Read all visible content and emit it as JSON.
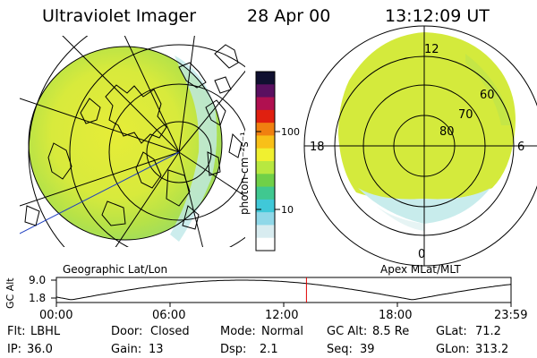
{
  "header": {
    "instrument": "Ultraviolet Imager",
    "date": "28 Apr 00",
    "time": "13:12:09 UT"
  },
  "geo_panel": {
    "caption": "Geographic Lat/Lon"
  },
  "apex_panel": {
    "caption": "Apex MLat/MLT",
    "mlt_labels": [
      "12",
      "18",
      "6",
      "0"
    ],
    "mlat_labels": [
      "60",
      "70",
      "80"
    ]
  },
  "colorbar": {
    "unit_label": "photon cm⁻²s⁻¹",
    "scale": "log",
    "ticks": [
      "100",
      "10"
    ],
    "colors": [
      "#101030",
      "#5a1060",
      "#b01050",
      "#e02010",
      "#f08010",
      "#f8c018",
      "#f0f030",
      "#b8e840",
      "#70d048",
      "#40c890",
      "#40c8d8",
      "#90d8e8",
      "#d8ecf0",
      "#ffffff"
    ]
  },
  "altitude_plot": {
    "ylabel": "GC Alt",
    "yticks": [
      "9.0",
      "1.8"
    ],
    "xticks": [
      "00:00",
      "06:00",
      "12:00",
      "18:00",
      "23:59"
    ],
    "marker_hour": 13.2,
    "marker_color": "#e00000"
  },
  "info": {
    "row1": [
      {
        "label": "Flt:",
        "value": "LBHL"
      },
      {
        "label": "Door:",
        "value": "Closed"
      },
      {
        "label": "Mode:",
        "value": "Normal"
      },
      {
        "label": "GC Alt:",
        "value": "8.5 Re"
      },
      {
        "label": "GLat:",
        "value": "71.2"
      }
    ],
    "row2": [
      {
        "label": "IP:",
        "value": "36.0"
      },
      {
        "label": "Gain:",
        "value": "13"
      },
      {
        "label": "Dsp:",
        "value": "2.1"
      },
      {
        "label": "Seq:",
        "value": "39"
      },
      {
        "label": "GLon:",
        "value": "313.2"
      }
    ]
  }
}
